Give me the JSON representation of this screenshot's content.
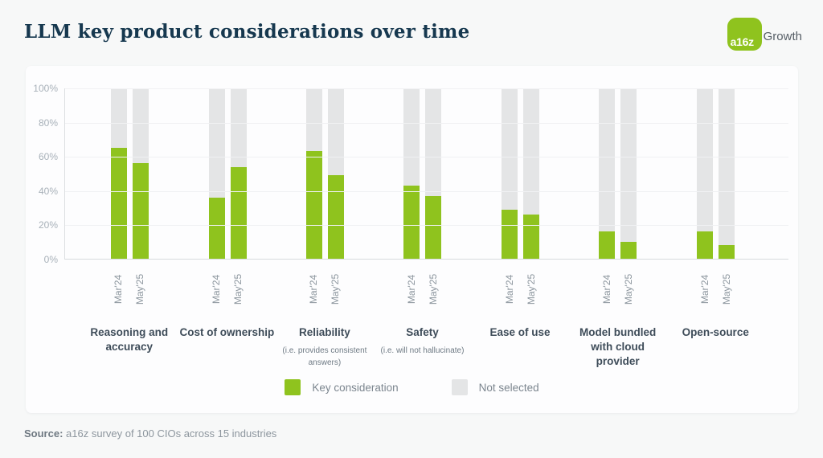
{
  "header": {
    "title": "LLM key product considerations over time",
    "logo_mark": "a16z",
    "logo_suffix": "Growth"
  },
  "chart_data": {
    "type": "bar",
    "subtype": "stacked-100-percent",
    "title": "LLM key product considerations over time",
    "categories": [
      {
        "label": "Reasoning and accuracy",
        "sub": ""
      },
      {
        "label": "Cost of ownership",
        "sub": ""
      },
      {
        "label": "Reliability",
        "sub": "(i.e. provides consistent answers)"
      },
      {
        "label": "Safety",
        "sub": "(i.e. will not hallucinate)"
      },
      {
        "label": "Ease of use",
        "sub": ""
      },
      {
        "label": "Model bundled with cloud provider",
        "sub": ""
      },
      {
        "label": "Open-source",
        "sub": ""
      }
    ],
    "series": [
      {
        "name": "Mar'24",
        "values": [
          65,
          36,
          63,
          43,
          29,
          16,
          16
        ]
      },
      {
        "name": "May'25",
        "values": [
          56,
          54,
          49,
          37,
          26,
          10,
          8
        ]
      }
    ],
    "series_note": "values are the green 'Key consideration' share; gray 'Not selected' fills the remainder to 100%",
    "y_ticks": [
      "0%",
      "20%",
      "40%",
      "60%",
      "80%",
      "100%"
    ],
    "ylim": [
      0,
      100
    ],
    "grid": true,
    "legend_position": "bottom-center",
    "legend": [
      {
        "label": "Key consideration",
        "color": "#8fc31e"
      },
      {
        "label": "Not selected",
        "color": "#e4e5e6"
      }
    ]
  },
  "footer": {
    "source_label": "Source:",
    "source_text": " a16z survey of 100 CIOs across 15 industries"
  }
}
